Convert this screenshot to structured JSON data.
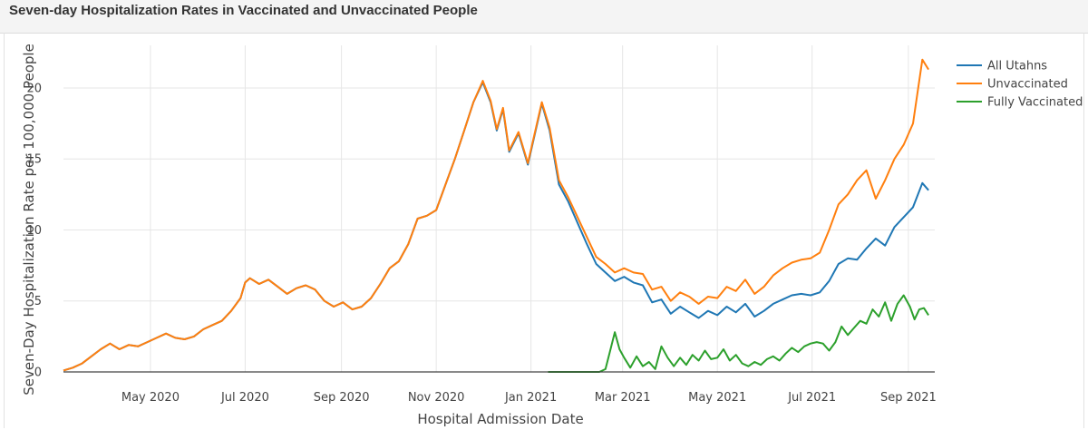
{
  "panel": {
    "title": "Seven-day Hospitalization Rates in Vaccinated and Unvaccinated People"
  },
  "chart_data": {
    "type": "line",
    "title": "Seven-day Hospitalization Rates in Vaccinated and Unvaccinated People",
    "xlabel": "Hospital Admission Date",
    "ylabel": "Seven-Day Hospitalization Rate per 100,000 People",
    "x_type": "date",
    "xlim": [
      "2020-03-06",
      "2021-09-18"
    ],
    "ylim": [
      0,
      23
    ],
    "x_ticks": [
      {
        "date": "2020-05-01",
        "label": "May 2020"
      },
      {
        "date": "2020-07-01",
        "label": "Jul 2020"
      },
      {
        "date": "2020-09-01",
        "label": "Sep 2020"
      },
      {
        "date": "2020-11-01",
        "label": "Nov 2020"
      },
      {
        "date": "2021-01-01",
        "label": "Jan 2021"
      },
      {
        "date": "2021-03-01",
        "label": "Mar 2021"
      },
      {
        "date": "2021-05-01",
        "label": "May 2021"
      },
      {
        "date": "2021-07-01",
        "label": "Jul 2021"
      },
      {
        "date": "2021-09-01",
        "label": "Sep 2021"
      }
    ],
    "y_ticks": [
      0,
      5,
      10,
      15,
      20
    ],
    "grid": true,
    "legend_position": "top-right",
    "series": [
      {
        "name": "All Utahns",
        "color": "#1f77b4",
        "points": [
          [
            "2020-03-06",
            0.1
          ],
          [
            "2020-03-12",
            0.3
          ],
          [
            "2020-03-18",
            0.6
          ],
          [
            "2020-03-24",
            1.1
          ],
          [
            "2020-03-30",
            1.6
          ],
          [
            "2020-04-05",
            2.0
          ],
          [
            "2020-04-11",
            1.6
          ],
          [
            "2020-04-17",
            1.9
          ],
          [
            "2020-04-23",
            1.8
          ],
          [
            "2020-04-29",
            2.1
          ],
          [
            "2020-05-05",
            2.4
          ],
          [
            "2020-05-11",
            2.7
          ],
          [
            "2020-05-17",
            2.4
          ],
          [
            "2020-05-23",
            2.3
          ],
          [
            "2020-05-29",
            2.5
          ],
          [
            "2020-06-04",
            3.0
          ],
          [
            "2020-06-10",
            3.3
          ],
          [
            "2020-06-16",
            3.6
          ],
          [
            "2020-06-22",
            4.3
          ],
          [
            "2020-06-28",
            5.2
          ],
          [
            "2020-07-01",
            6.3
          ],
          [
            "2020-07-04",
            6.6
          ],
          [
            "2020-07-10",
            6.2
          ],
          [
            "2020-07-16",
            6.5
          ],
          [
            "2020-07-22",
            6.0
          ],
          [
            "2020-07-28",
            5.5
          ],
          [
            "2020-08-03",
            5.9
          ],
          [
            "2020-08-09",
            6.1
          ],
          [
            "2020-08-15",
            5.8
          ],
          [
            "2020-08-21",
            5.0
          ],
          [
            "2020-08-27",
            4.6
          ],
          [
            "2020-09-02",
            4.9
          ],
          [
            "2020-09-08",
            4.4
          ],
          [
            "2020-09-14",
            4.6
          ],
          [
            "2020-09-20",
            5.2
          ],
          [
            "2020-09-26",
            6.2
          ],
          [
            "2020-10-02",
            7.3
          ],
          [
            "2020-10-08",
            7.8
          ],
          [
            "2020-10-14",
            9.0
          ],
          [
            "2020-10-20",
            10.8
          ],
          [
            "2020-10-26",
            11.0
          ],
          [
            "2020-11-01",
            11.4
          ],
          [
            "2020-11-07",
            13.2
          ],
          [
            "2020-11-13",
            15.0
          ],
          [
            "2020-11-19",
            17.0
          ],
          [
            "2020-11-25",
            19.0
          ],
          [
            "2020-12-01",
            20.4
          ],
          [
            "2020-12-06",
            19.0
          ],
          [
            "2020-12-10",
            17.0
          ],
          [
            "2020-12-14",
            18.5
          ],
          [
            "2020-12-18",
            15.5
          ],
          [
            "2020-12-24",
            16.8
          ],
          [
            "2020-12-30",
            14.6
          ],
          [
            "2021-01-04",
            17.0
          ],
          [
            "2021-01-08",
            18.9
          ],
          [
            "2021-01-13",
            17.0
          ],
          [
            "2021-01-19",
            13.2
          ],
          [
            "2021-01-25",
            12.0
          ],
          [
            "2021-01-31",
            10.5
          ],
          [
            "2021-02-06",
            9.0
          ],
          [
            "2021-02-12",
            7.6
          ],
          [
            "2021-02-18",
            7.0
          ],
          [
            "2021-02-24",
            6.4
          ],
          [
            "2021-03-02",
            6.7
          ],
          [
            "2021-03-08",
            6.3
          ],
          [
            "2021-03-14",
            6.1
          ],
          [
            "2021-03-20",
            4.9
          ],
          [
            "2021-03-26",
            5.1
          ],
          [
            "2021-04-01",
            4.1
          ],
          [
            "2021-04-07",
            4.6
          ],
          [
            "2021-04-13",
            4.2
          ],
          [
            "2021-04-19",
            3.8
          ],
          [
            "2021-04-25",
            4.3
          ],
          [
            "2021-05-01",
            4.0
          ],
          [
            "2021-05-07",
            4.6
          ],
          [
            "2021-05-13",
            4.2
          ],
          [
            "2021-05-19",
            4.8
          ],
          [
            "2021-05-25",
            3.9
          ],
          [
            "2021-05-31",
            4.3
          ],
          [
            "2021-06-06",
            4.8
          ],
          [
            "2021-06-12",
            5.1
          ],
          [
            "2021-06-18",
            5.4
          ],
          [
            "2021-06-24",
            5.5
          ],
          [
            "2021-06-30",
            5.4
          ],
          [
            "2021-07-06",
            5.6
          ],
          [
            "2021-07-12",
            6.4
          ],
          [
            "2021-07-18",
            7.6
          ],
          [
            "2021-07-24",
            8.0
          ],
          [
            "2021-07-30",
            7.9
          ],
          [
            "2021-08-05",
            8.7
          ],
          [
            "2021-08-11",
            9.4
          ],
          [
            "2021-08-17",
            8.9
          ],
          [
            "2021-08-23",
            10.2
          ],
          [
            "2021-08-29",
            10.9
          ],
          [
            "2021-09-04",
            11.6
          ],
          [
            "2021-09-10",
            13.3
          ],
          [
            "2021-09-14",
            12.8
          ]
        ]
      },
      {
        "name": "Unvaccinated",
        "color": "#ff7f0e",
        "points": [
          [
            "2020-03-06",
            0.1
          ],
          [
            "2020-03-12",
            0.3
          ],
          [
            "2020-03-18",
            0.6
          ],
          [
            "2020-03-24",
            1.1
          ],
          [
            "2020-03-30",
            1.6
          ],
          [
            "2020-04-05",
            2.0
          ],
          [
            "2020-04-11",
            1.6
          ],
          [
            "2020-04-17",
            1.9
          ],
          [
            "2020-04-23",
            1.8
          ],
          [
            "2020-04-29",
            2.1
          ],
          [
            "2020-05-05",
            2.4
          ],
          [
            "2020-05-11",
            2.7
          ],
          [
            "2020-05-17",
            2.4
          ],
          [
            "2020-05-23",
            2.3
          ],
          [
            "2020-05-29",
            2.5
          ],
          [
            "2020-06-04",
            3.0
          ],
          [
            "2020-06-10",
            3.3
          ],
          [
            "2020-06-16",
            3.6
          ],
          [
            "2020-06-22",
            4.3
          ],
          [
            "2020-06-28",
            5.2
          ],
          [
            "2020-07-01",
            6.3
          ],
          [
            "2020-07-04",
            6.6
          ],
          [
            "2020-07-10",
            6.2
          ],
          [
            "2020-07-16",
            6.5
          ],
          [
            "2020-07-22",
            6.0
          ],
          [
            "2020-07-28",
            5.5
          ],
          [
            "2020-08-03",
            5.9
          ],
          [
            "2020-08-09",
            6.1
          ],
          [
            "2020-08-15",
            5.8
          ],
          [
            "2020-08-21",
            5.0
          ],
          [
            "2020-08-27",
            4.6
          ],
          [
            "2020-09-02",
            4.9
          ],
          [
            "2020-09-08",
            4.4
          ],
          [
            "2020-09-14",
            4.6
          ],
          [
            "2020-09-20",
            5.2
          ],
          [
            "2020-09-26",
            6.2
          ],
          [
            "2020-10-02",
            7.3
          ],
          [
            "2020-10-08",
            7.8
          ],
          [
            "2020-10-14",
            9.0
          ],
          [
            "2020-10-20",
            10.8
          ],
          [
            "2020-10-26",
            11.0
          ],
          [
            "2020-11-01",
            11.4
          ],
          [
            "2020-11-07",
            13.2
          ],
          [
            "2020-11-13",
            15.0
          ],
          [
            "2020-11-19",
            17.0
          ],
          [
            "2020-11-25",
            19.0
          ],
          [
            "2020-12-01",
            20.5
          ],
          [
            "2020-12-06",
            19.1
          ],
          [
            "2020-12-10",
            17.1
          ],
          [
            "2020-12-14",
            18.6
          ],
          [
            "2020-12-18",
            15.6
          ],
          [
            "2020-12-24",
            16.9
          ],
          [
            "2020-12-30",
            14.7
          ],
          [
            "2021-01-04",
            17.1
          ],
          [
            "2021-01-08",
            19.0
          ],
          [
            "2021-01-13",
            17.2
          ],
          [
            "2021-01-19",
            13.5
          ],
          [
            "2021-01-25",
            12.3
          ],
          [
            "2021-01-31",
            10.9
          ],
          [
            "2021-02-06",
            9.5
          ],
          [
            "2021-02-12",
            8.1
          ],
          [
            "2021-02-18",
            7.6
          ],
          [
            "2021-02-24",
            7.0
          ],
          [
            "2021-03-02",
            7.3
          ],
          [
            "2021-03-08",
            7.0
          ],
          [
            "2021-03-14",
            6.9
          ],
          [
            "2021-03-20",
            5.8
          ],
          [
            "2021-03-26",
            6.0
          ],
          [
            "2021-04-01",
            5.0
          ],
          [
            "2021-04-07",
            5.6
          ],
          [
            "2021-04-13",
            5.3
          ],
          [
            "2021-04-19",
            4.8
          ],
          [
            "2021-04-25",
            5.3
          ],
          [
            "2021-05-01",
            5.2
          ],
          [
            "2021-05-07",
            6.0
          ],
          [
            "2021-05-13",
            5.7
          ],
          [
            "2021-05-19",
            6.5
          ],
          [
            "2021-05-25",
            5.5
          ],
          [
            "2021-05-31",
            6.0
          ],
          [
            "2021-06-06",
            6.8
          ],
          [
            "2021-06-12",
            7.3
          ],
          [
            "2021-06-18",
            7.7
          ],
          [
            "2021-06-24",
            7.9
          ],
          [
            "2021-06-30",
            8.0
          ],
          [
            "2021-07-06",
            8.4
          ],
          [
            "2021-07-12",
            10.0
          ],
          [
            "2021-07-18",
            11.8
          ],
          [
            "2021-07-24",
            12.5
          ],
          [
            "2021-07-30",
            13.5
          ],
          [
            "2021-08-05",
            14.2
          ],
          [
            "2021-08-11",
            12.2
          ],
          [
            "2021-08-17",
            13.5
          ],
          [
            "2021-08-23",
            15.0
          ],
          [
            "2021-08-29",
            16.0
          ],
          [
            "2021-09-04",
            17.5
          ],
          [
            "2021-09-10",
            22.0
          ],
          [
            "2021-09-14",
            21.3
          ]
        ]
      },
      {
        "name": "Fully Vaccinated",
        "color": "#2ca02c",
        "points": [
          [
            "2021-01-12",
            0.0
          ],
          [
            "2021-02-14",
            0.0
          ],
          [
            "2021-02-18",
            0.2
          ],
          [
            "2021-02-21",
            1.5
          ],
          [
            "2021-02-24",
            2.8
          ],
          [
            "2021-02-27",
            1.6
          ],
          [
            "2021-03-02",
            1.0
          ],
          [
            "2021-03-06",
            0.3
          ],
          [
            "2021-03-10",
            1.1
          ],
          [
            "2021-03-14",
            0.4
          ],
          [
            "2021-03-18",
            0.7
          ],
          [
            "2021-03-22",
            0.2
          ],
          [
            "2021-03-26",
            1.8
          ],
          [
            "2021-03-30",
            1.0
          ],
          [
            "2021-04-03",
            0.4
          ],
          [
            "2021-04-07",
            1.0
          ],
          [
            "2021-04-11",
            0.5
          ],
          [
            "2021-04-15",
            1.2
          ],
          [
            "2021-04-19",
            0.8
          ],
          [
            "2021-04-23",
            1.5
          ],
          [
            "2021-04-27",
            0.9
          ],
          [
            "2021-05-01",
            1.0
          ],
          [
            "2021-05-05",
            1.6
          ],
          [
            "2021-05-09",
            0.8
          ],
          [
            "2021-05-13",
            1.2
          ],
          [
            "2021-05-17",
            0.6
          ],
          [
            "2021-05-21",
            0.4
          ],
          [
            "2021-05-25",
            0.7
          ],
          [
            "2021-05-29",
            0.5
          ],
          [
            "2021-06-02",
            0.9
          ],
          [
            "2021-06-06",
            1.1
          ],
          [
            "2021-06-10",
            0.8
          ],
          [
            "2021-06-14",
            1.3
          ],
          [
            "2021-06-18",
            1.7
          ],
          [
            "2021-06-22",
            1.4
          ],
          [
            "2021-06-26",
            1.8
          ],
          [
            "2021-06-30",
            2.0
          ],
          [
            "2021-07-04",
            2.1
          ],
          [
            "2021-07-08",
            2.0
          ],
          [
            "2021-07-12",
            1.5
          ],
          [
            "2021-07-16",
            2.1
          ],
          [
            "2021-07-20",
            3.2
          ],
          [
            "2021-07-24",
            2.6
          ],
          [
            "2021-07-28",
            3.1
          ],
          [
            "2021-08-01",
            3.6
          ],
          [
            "2021-08-05",
            3.4
          ],
          [
            "2021-08-09",
            4.4
          ],
          [
            "2021-08-13",
            3.9
          ],
          [
            "2021-08-17",
            4.9
          ],
          [
            "2021-08-21",
            3.6
          ],
          [
            "2021-08-25",
            4.8
          ],
          [
            "2021-08-29",
            5.4
          ],
          [
            "2021-09-02",
            4.6
          ],
          [
            "2021-09-05",
            3.7
          ],
          [
            "2021-09-08",
            4.4
          ],
          [
            "2021-09-11",
            4.5
          ],
          [
            "2021-09-14",
            4.0
          ]
        ]
      }
    ]
  }
}
